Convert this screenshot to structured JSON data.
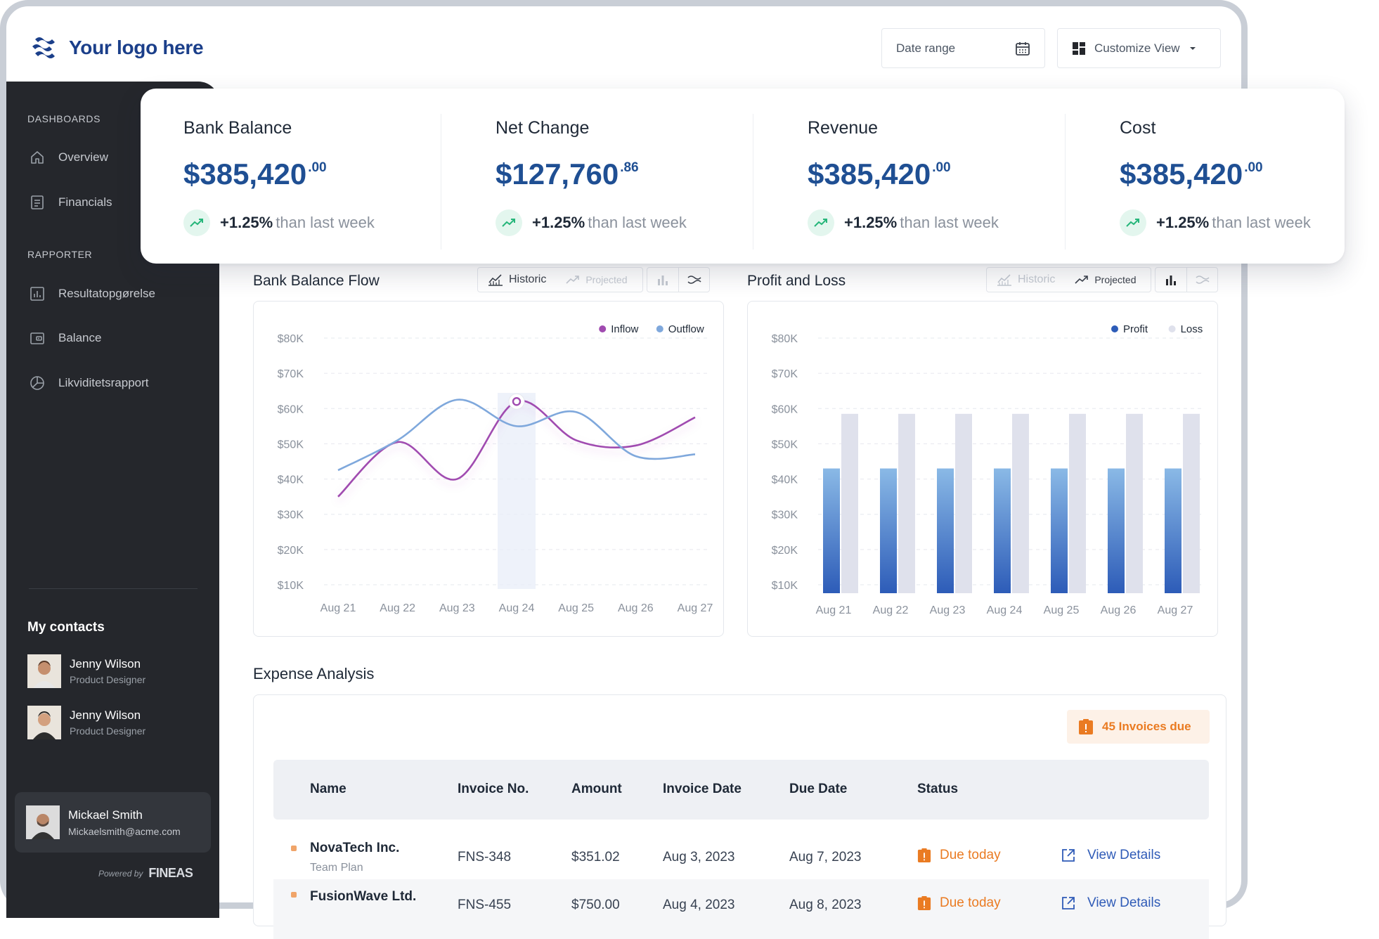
{
  "header": {
    "logo_text": "Your logo here",
    "date_range_label": "Date range",
    "customize_label": "Customize View"
  },
  "sidebar": {
    "section_dashboards": "DASHBOARDS",
    "section_reports": "RAPPORTER",
    "items": [
      {
        "label": "Overview",
        "icon": "home-icon"
      },
      {
        "label": "Financials",
        "icon": "document-icon"
      },
      {
        "label": "Resultatopgørelse",
        "icon": "bar-report-icon"
      },
      {
        "label": "Balance",
        "icon": "wallet-icon"
      },
      {
        "label": "Likviditetsrapport",
        "icon": "pie-chart-icon"
      }
    ],
    "contacts_title": "My contacts",
    "contacts": [
      {
        "name": "Jenny Wilson",
        "role": "Product Designer"
      },
      {
        "name": "Jenny Wilson",
        "role": "Product Designer"
      }
    ],
    "user": {
      "name": "Mickael Smith",
      "email": "Mickaelsmith@acme.com"
    },
    "powered_by": "Powered by",
    "powered_brand": "FINEAS"
  },
  "kpis": [
    {
      "title": "Bank Balance",
      "value": "$385,420",
      "cents": ".00",
      "delta": "+1.25%",
      "delta_text": "than last week"
    },
    {
      "title": "Net Change",
      "value": "$127,760",
      "cents": ".86",
      "delta": "+1.25%",
      "delta_text": "than last week"
    },
    {
      "title": "Revenue",
      "value": "$385,420",
      "cents": ".00",
      "delta": "+1.25%",
      "delta_text": "than last week"
    },
    {
      "title": "Cost",
      "value": "$385,420",
      "cents": ".00",
      "delta": "+1.25%",
      "delta_text": "than last week"
    }
  ],
  "colors": {
    "accent": "#1f4f93",
    "inflow": "#a04bb0",
    "outflow": "#7fa8dc",
    "profit": "#2d5cb8",
    "loss": "#dfe1ec",
    "warning": "#ea7b22",
    "sidebar": "#25272c"
  },
  "charts": {
    "bank_flow": {
      "title": "Bank Balance Flow",
      "toggle_historic": "Historic",
      "toggle_projected": "Projected",
      "active": "historic",
      "legend": [
        "Inflow",
        "Outflow"
      ]
    },
    "profit_loss": {
      "title": "Profit and Loss",
      "toggle_historic": "Historic",
      "toggle_projected": "Projected",
      "active": "projected",
      "legend": [
        "Profit",
        "Loss"
      ]
    }
  },
  "chart_data": [
    {
      "type": "line",
      "title": "Bank Balance Flow",
      "x": [
        "Aug 21",
        "Aug 22",
        "Aug 23",
        "Aug 24",
        "Aug 25",
        "Aug 26",
        "Aug 27"
      ],
      "y_ticks": [
        "$80K",
        "$70K",
        "$60K",
        "$50K",
        "$40K",
        "$30K",
        "$20K",
        "$10K"
      ],
      "ylim": [
        10000,
        80000
      ],
      "series": [
        {
          "name": "Inflow",
          "values": [
            35000,
            50500,
            40000,
            62000,
            51000,
            49500,
            57500
          ]
        },
        {
          "name": "Outflow",
          "values": [
            42500,
            51000,
            62500,
            55000,
            59000,
            46500,
            47000
          ]
        }
      ],
      "highlight": "Aug 24",
      "legend_position": "top-right",
      "grid": true
    },
    {
      "type": "bar",
      "title": "Profit and Loss",
      "categories": [
        "Aug 21",
        "Aug 22",
        "Aug 23",
        "Aug 24",
        "Aug 25",
        "Aug 26",
        "Aug 27"
      ],
      "y_ticks": [
        "$80K",
        "$70K",
        "$60K",
        "$50K",
        "$40K",
        "$30K",
        "$20K",
        "$10K"
      ],
      "ylim": [
        10000,
        80000
      ],
      "series": [
        {
          "name": "Profit",
          "values": [
            43000,
            43000,
            43000,
            43000,
            43000,
            43000,
            43000
          ]
        },
        {
          "name": "Loss",
          "values": [
            58500,
            58500,
            58500,
            58500,
            58500,
            58500,
            58500
          ]
        }
      ],
      "legend_position": "top-right",
      "grid": true
    }
  ],
  "expense": {
    "title": "Expense Analysis",
    "invoices_due": "45 Invoices due",
    "columns": [
      "Name",
      "Invoice No.",
      "Amount",
      "Invoice Date",
      "Due Date",
      "Status"
    ],
    "rows": [
      {
        "name": "NovaTech Inc.",
        "plan": "Team Plan",
        "invoice": "FNS-348",
        "amount": "$351.02",
        "invoice_date": "Aug 3, 2023",
        "due_date": "Aug 7, 2023",
        "status": "Due today",
        "action": "View Details"
      },
      {
        "name": "FusionWave Ltd.",
        "plan": "",
        "invoice": "FNS-455",
        "amount": "$750.00",
        "invoice_date": "Aug 4, 2023",
        "due_date": "Aug 8, 2023",
        "status": "Due today",
        "action": "View Details"
      }
    ]
  }
}
